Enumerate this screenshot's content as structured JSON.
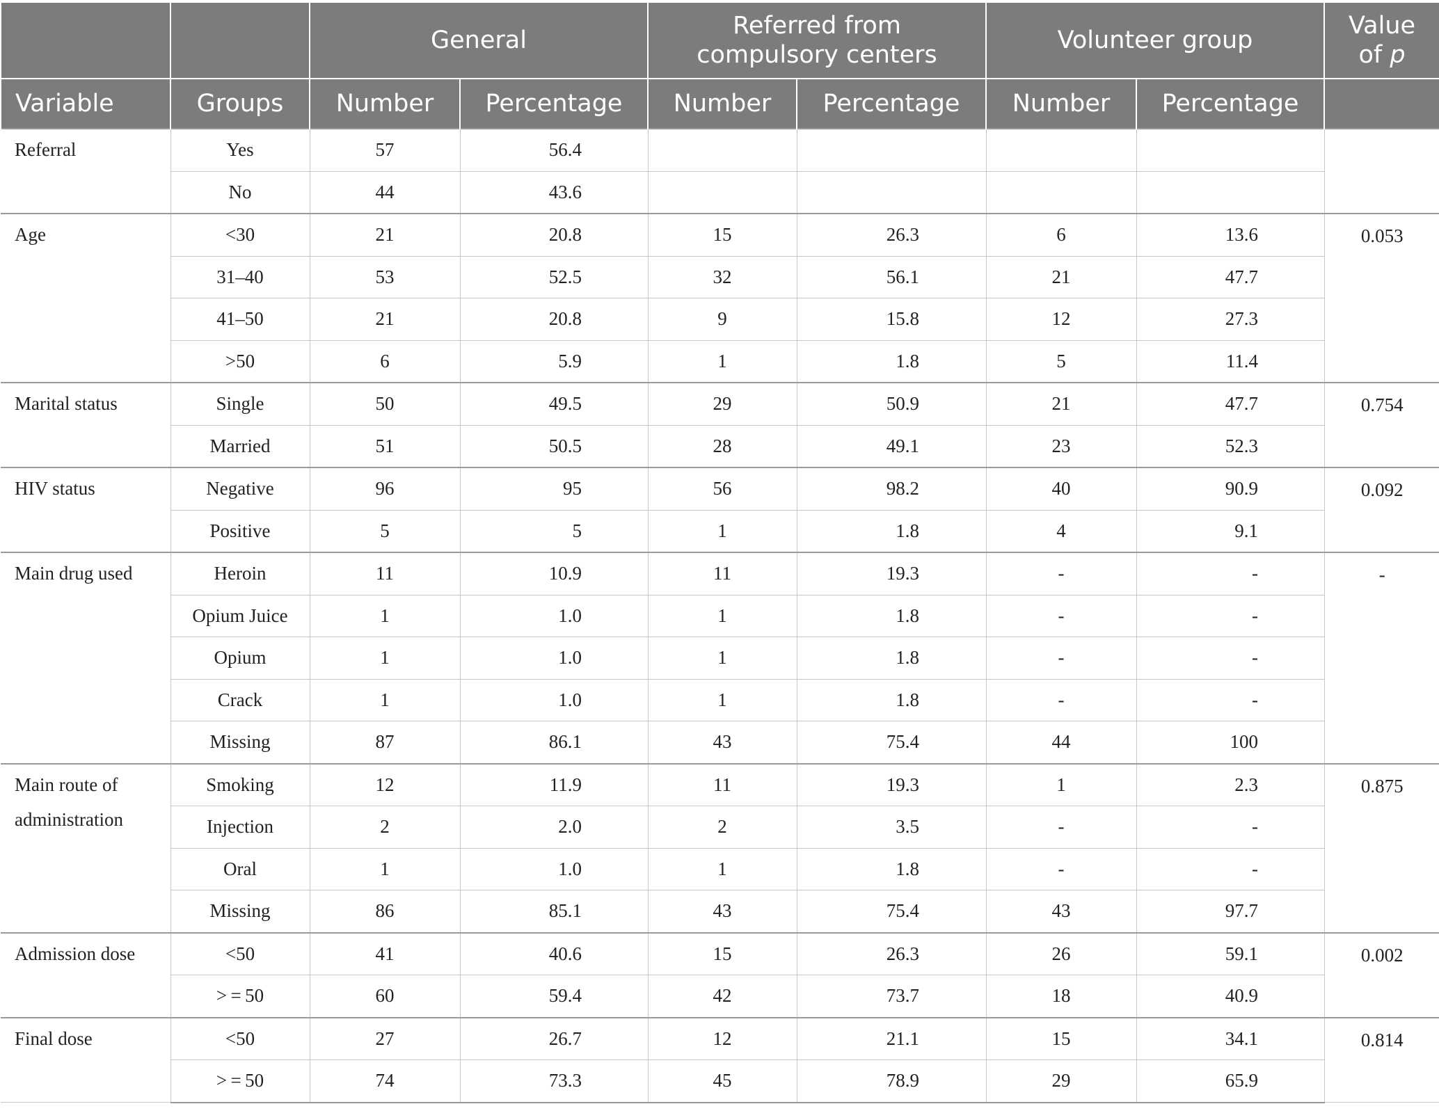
{
  "header": {
    "groups": [
      "General",
      "Referred from compulsory centers",
      "Volunteer group"
    ],
    "pvalue_line1": "Value",
    "pvalue_line2_prefix": "of ",
    "pvalue_line2_symbol": "p",
    "columns": [
      "Variable",
      "Groups",
      "Number",
      "Percentage",
      "Number",
      "Percentage",
      "Number",
      "Percentage"
    ]
  },
  "variables": [
    {
      "name": "Referral",
      "p": "",
      "rows": [
        {
          "group": "Yes",
          "gn": "57",
          "gp": "56.4",
          "rn": "",
          "rp": "",
          "vn": "",
          "vp": ""
        },
        {
          "group": "No",
          "gn": "44",
          "gp": "43.6",
          "rn": "",
          "rp": "",
          "vn": "",
          "vp": ""
        }
      ]
    },
    {
      "name": "Age",
      "p": "0.053",
      "rows": [
        {
          "group": "<30",
          "gn": "21",
          "gp": "20.8",
          "rn": "15",
          "rp": "26.3",
          "vn": "6",
          "vp": "13.6"
        },
        {
          "group": "31–40",
          "gn": "53",
          "gp": "52.5",
          "rn": "32",
          "rp": "56.1",
          "vn": "21",
          "vp": "47.7"
        },
        {
          "group": "41–50",
          "gn": "21",
          "gp": "20.8",
          "rn": "9",
          "rp": "15.8",
          "vn": "12",
          "vp": "27.3"
        },
        {
          "group": ">50",
          "gn": "6",
          "gp": "5.9",
          "rn": "1",
          "rp": "1.8",
          "vn": "5",
          "vp": "11.4"
        }
      ]
    },
    {
      "name": "Marital status",
      "p": "0.754",
      "rows": [
        {
          "group": "Single",
          "gn": "50",
          "gp": "49.5",
          "rn": "29",
          "rp": "50.9",
          "vn": "21",
          "vp": "47.7"
        },
        {
          "group": "Married",
          "gn": "51",
          "gp": "50.5",
          "rn": "28",
          "rp": "49.1",
          "vn": "23",
          "vp": "52.3"
        }
      ]
    },
    {
      "name": "HIV status",
      "p": "0.092",
      "rows": [
        {
          "group": "Negative",
          "gn": "96",
          "gp": "95",
          "rn": "56",
          "rp": "98.2",
          "vn": "40",
          "vp": "90.9"
        },
        {
          "group": "Positive",
          "gn": "5",
          "gp": "5",
          "rn": "1",
          "rp": "1.8",
          "vn": "4",
          "vp": "9.1"
        }
      ]
    },
    {
      "name": "Main drug used",
      "p": "-",
      "rows": [
        {
          "group": "Heroin",
          "gn": "11",
          "gp": "10.9",
          "rn": "11",
          "rp": "19.3",
          "vn": "-",
          "vp": "-"
        },
        {
          "group": "Opium Juice",
          "gn": "1",
          "gp": "1.0",
          "rn": "1",
          "rp": "1.8",
          "vn": "-",
          "vp": "-"
        },
        {
          "group": "Opium",
          "gn": "1",
          "gp": "1.0",
          "rn": "1",
          "rp": "1.8",
          "vn": "-",
          "vp": "-"
        },
        {
          "group": "Crack",
          "gn": "1",
          "gp": "1.0",
          "rn": "1",
          "rp": "1.8",
          "vn": "-",
          "vp": "-"
        },
        {
          "group": "Missing",
          "gn": "87",
          "gp": "86.1",
          "rn": "43",
          "rp": "75.4",
          "vn": "44",
          "vp": "100"
        }
      ]
    },
    {
      "name": "Main route of administration",
      "p": "0.875",
      "rows": [
        {
          "group": "Smoking",
          "gn": "12",
          "gp": "11.9",
          "rn": "11",
          "rp": "19.3",
          "vn": "1",
          "vp": "2.3"
        },
        {
          "group": "Injection",
          "gn": "2",
          "gp": "2.0",
          "rn": "2",
          "rp": "3.5",
          "vn": "-",
          "vp": "-"
        },
        {
          "group": "Oral",
          "gn": "1",
          "gp": "1.0",
          "rn": "1",
          "rp": "1.8",
          "vn": "-",
          "vp": "-"
        },
        {
          "group": "Missing",
          "gn": "86",
          "gp": "85.1",
          "rn": "43",
          "rp": "75.4",
          "vn": "43",
          "vp": "97.7"
        }
      ]
    },
    {
      "name": "Admission dose",
      "p": "0.002",
      "rows": [
        {
          "group": "<50",
          "gn": "41",
          "gp": "40.6",
          "rn": "15",
          "rp": "26.3",
          "vn": "26",
          "vp": "59.1"
        },
        {
          "group": "> = 50",
          "gn": "60",
          "gp": "59.4",
          "rn": "42",
          "rp": "73.7",
          "vn": "18",
          "vp": "40.9"
        }
      ]
    },
    {
      "name": "Final dose",
      "p": "0.814",
      "rows": [
        {
          "group": "<50",
          "gn": "27",
          "gp": "26.7",
          "rn": "12",
          "rp": "21.1",
          "vn": "15",
          "vp": "34.1"
        },
        {
          "group": "> = 50",
          "gn": "74",
          "gp": "73.3",
          "rn": "45",
          "rp": "78.9",
          "vn": "29",
          "vp": "65.9"
        }
      ]
    }
  ]
}
